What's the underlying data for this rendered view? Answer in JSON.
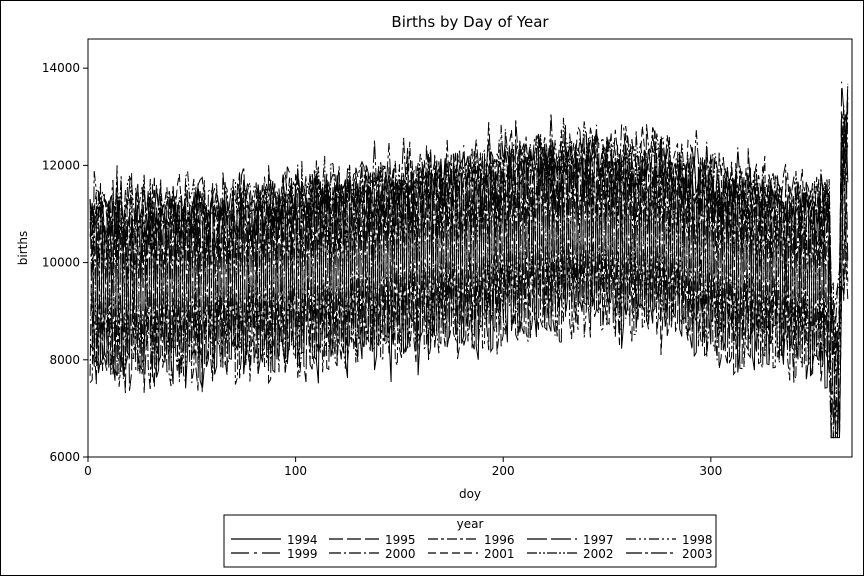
{
  "chart_data": {
    "type": "line",
    "title": "Births by Day of Year",
    "xlabel": "doy",
    "ylabel": "births",
    "xlim": [
      0,
      368
    ],
    "ylim": [
      6000,
      14600
    ],
    "xticks": [
      0,
      100,
      200,
      300
    ],
    "yticks": [
      6000,
      8000,
      10000,
      12000,
      14000
    ],
    "grid": false,
    "legend": {
      "title": "year",
      "placement": "bottom-center"
    },
    "series": [
      {
        "name": "1994",
        "dash": "none",
        "base": 10100
      },
      {
        "name": "1995",
        "dash": "14,4",
        "base": 10150
      },
      {
        "name": "1996",
        "dash": "10,3,3,3",
        "base": 10250
      },
      {
        "name": "1997",
        "dash": "20,4",
        "base": 10300
      },
      {
        "name": "1998",
        "dash": "10,3,2,3,2,3",
        "base": 10350
      },
      {
        "name": "1999",
        "dash": "18,5,3,5",
        "base": 10400
      },
      {
        "name": "2000",
        "dash": "12,3,2,3",
        "base": 10500
      },
      {
        "name": "2001",
        "dash": "8,4",
        "base": 10550
      },
      {
        "name": "2002",
        "dash": "10,2,2,2,2,2",
        "base": 10600
      },
      {
        "name": "2003",
        "dash": "16,3,3,3",
        "base": 10700
      }
    ],
    "x_range_days": [
      1,
      366
    ],
    "seasonal_peak_doy": 252,
    "typical_range": [
      7000,
      14500
    ]
  }
}
